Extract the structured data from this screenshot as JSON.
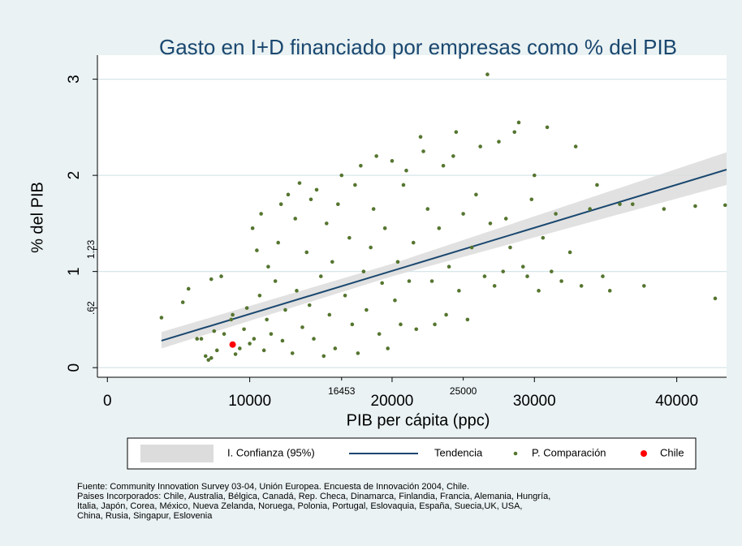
{
  "chart_data": {
    "type": "scatter",
    "title": "Gasto en I+D financiado por empresas como % del PIB",
    "xlabel": "PIB per cápita (ppc)",
    "ylabel": "% del PIB",
    "xlim": [
      -700,
      43500
    ],
    "ylim": [
      -0.1,
      3.25
    ],
    "xticks": [
      0,
      10000,
      20000,
      30000,
      40000
    ],
    "xticks_minor": [
      16453,
      25000
    ],
    "yticks": [
      0,
      1,
      2,
      3
    ],
    "yticks_minor": [
      {
        "value": 0.62,
        "label": ".62"
      },
      {
        "value": 1.23,
        "label": "1.23"
      }
    ],
    "grid": true,
    "series": [
      {
        "name": "I. Confianza (95%)",
        "color": "#dcdcdc",
        "x": [
          3800,
          20000,
          43500
        ],
        "lower": [
          0.2,
          0.95,
          1.9
        ],
        "upper": [
          0.37,
          1.08,
          2.24
        ]
      },
      {
        "name": "Tendencia",
        "color": "#1a476f",
        "x": [
          3800,
          43500
        ],
        "values": [
          0.28,
          2.06
        ]
      },
      {
        "name": "P. Comparación",
        "color": "#55752f",
        "x": [
          3800,
          5300,
          5700,
          6300,
          6600,
          6900,
          7100,
          7300,
          7500,
          7300,
          8000,
          7700,
          8200,
          8700,
          8800,
          9000,
          9300,
          9600,
          9800,
          10000,
          10300,
          10200,
          10500,
          10800,
          10700,
          11000,
          11200,
          11300,
          11500,
          11800,
          12000,
          12200,
          12300,
          12500,
          12700,
          13000,
          13200,
          13300,
          13500,
          13700,
          14000,
          14200,
          14300,
          14500,
          14700,
          15000,
          15200,
          15400,
          15600,
          15800,
          16000,
          16200,
          16453,
          16700,
          17000,
          17200,
          17400,
          17600,
          17800,
          18000,
          18200,
          18500,
          18700,
          18900,
          19100,
          19300,
          19500,
          19700,
          20000,
          20200,
          20400,
          20600,
          20800,
          21000,
          21200,
          21500,
          21700,
          22000,
          22200,
          22500,
          22800,
          23000,
          23300,
          23600,
          23800,
          24000,
          24300,
          24500,
          24700,
          25000,
          25300,
          25600,
          25900,
          26200,
          26500,
          26700,
          26900,
          27200,
          27500,
          27800,
          28000,
          28300,
          28600,
          28900,
          29200,
          29500,
          29800,
          30000,
          30300,
          30600,
          30900,
          31200,
          31500,
          31900,
          32500,
          32900,
          33300,
          33900,
          34400,
          34800,
          35300,
          36000,
          36900,
          37700,
          39100,
          41300,
          42700,
          43400
        ],
        "values": [
          0.52,
          0.68,
          0.82,
          0.3,
          0.3,
          0.12,
          0.08,
          0.1,
          0.38,
          0.92,
          0.95,
          0.18,
          0.35,
          0.5,
          0.55,
          0.14,
          0.2,
          0.4,
          0.62,
          0.25,
          0.3,
          1.45,
          1.22,
          1.6,
          0.75,
          0.18,
          0.5,
          1.05,
          0.35,
          0.9,
          1.3,
          1.7,
          0.28,
          0.6,
          1.8,
          0.15,
          1.55,
          0.8,
          1.92,
          0.42,
          1.2,
          0.65,
          1.75,
          0.3,
          1.85,
          0.95,
          0.12,
          1.5,
          0.55,
          1.1,
          0.2,
          1.7,
          2.0,
          0.75,
          1.35,
          0.45,
          1.9,
          0.15,
          2.1,
          1.0,
          0.6,
          1.25,
          1.65,
          2.2,
          0.35,
          0.88,
          1.45,
          0.2,
          2.15,
          0.7,
          1.1,
          0.45,
          1.9,
          2.05,
          0.9,
          1.3,
          0.4,
          2.4,
          2.25,
          1.65,
          0.9,
          0.45,
          1.45,
          2.1,
          0.55,
          1.05,
          2.2,
          2.45,
          0.8,
          1.6,
          0.5,
          1.25,
          1.8,
          2.3,
          0.95,
          3.05,
          1.5,
          0.85,
          2.35,
          1.0,
          1.55,
          1.25,
          2.45,
          2.55,
          1.05,
          0.95,
          1.75,
          2.0,
          0.8,
          1.35,
          2.5,
          1.0,
          1.6,
          0.9,
          1.2,
          2.3,
          0.85,
          1.65,
          1.9,
          0.95,
          0.8,
          1.7,
          1.7,
          0.85,
          1.65,
          1.68,
          0.72,
          1.69
        ]
      },
      {
        "name": "Chile",
        "color": "#ff0000",
        "x": [
          8800
        ],
        "values": [
          0.24
        ]
      }
    ],
    "notes": [
      "Fuente: Community Innovation Survey 03-04, Unión Europea. Encuesta de Innovación 2004, Chile.",
      "Paises Incorporados: Chile, Australia, Bélgica, Canadá, Rep. Checa, Dinamarca, Finlandia, Francia, Alemania, Hungría,",
      "Italia, Japón, Corea, México, Nueva Zelanda, Noruega, Polonia, Portugal, Eslovaquia, España, Suecia,UK, USA,",
      "China, Rusia, Singapur, Eslovenia"
    ]
  }
}
